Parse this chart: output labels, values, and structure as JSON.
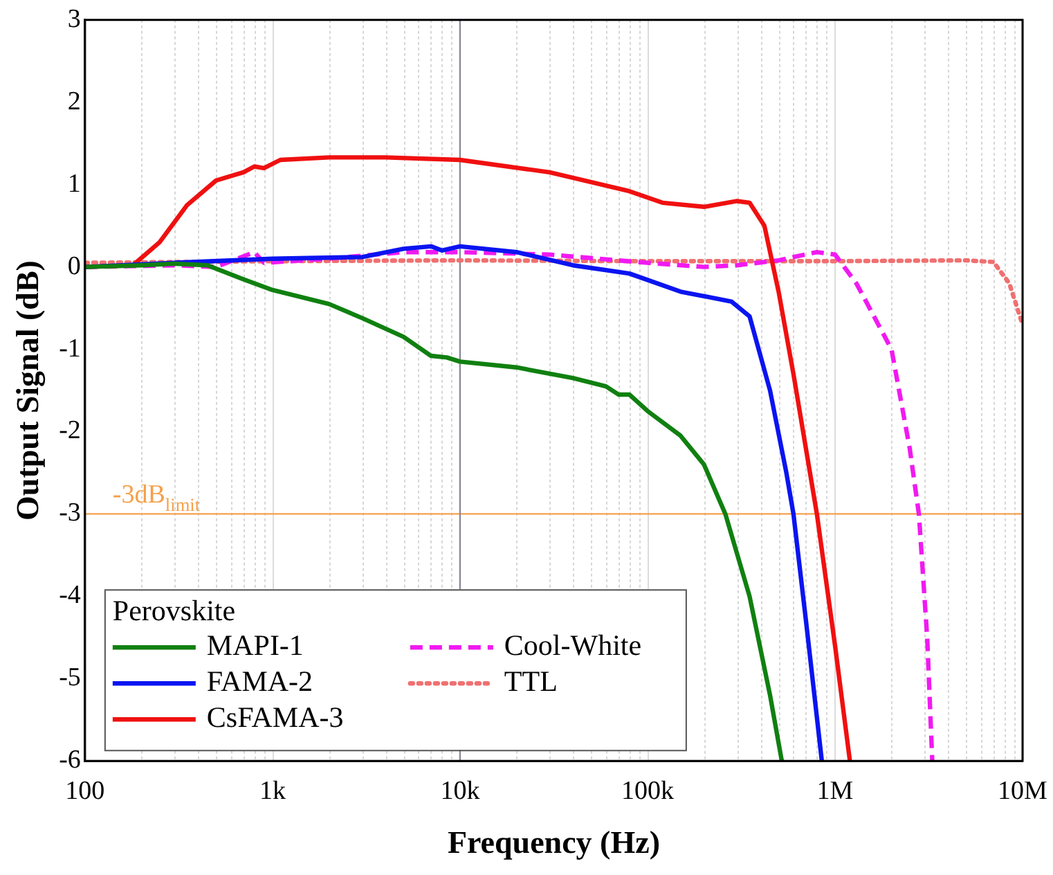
{
  "chart_data": {
    "type": "line",
    "xlabel": "Frequency (Hz)",
    "ylabel": "Output Signal (dB)",
    "log": "x",
    "grid": "x",
    "legend": "bottom left",
    "legend_title": "Perovskite",
    "marker": "none",
    "xlim": [
      100,
      10000000
    ],
    "xticks": [
      100,
      {
        "value": 1000,
        "label": "1k"
      },
      {
        "value": 10000,
        "label": "10k"
      },
      {
        "value": 100000,
        "label": "100k"
      },
      {
        "value": 1000000,
        "label": "1M"
      },
      {
        "value": 10000000,
        "label": "10M"
      }
    ],
    "ylim": [
      -6,
      3
    ],
    "yticks": [
      -6,
      -5,
      -4,
      -3,
      -2,
      -1,
      0,
      1,
      2,
      3
    ],
    "ref_lines": [
      {
        "axis": "y",
        "value": -3,
        "label": "-3dB$_{limit}$",
        "color": "#f5a04a"
      },
      {
        "axis": "x",
        "value": 10000,
        "label": null,
        "color": "#8a8a9a"
      }
    ],
    "series": [
      {
        "name": "MAPI-1",
        "color": "#108010",
        "line_style": "solid",
        "x": [
          100,
          200,
          300,
          450,
          700,
          1000,
          2000,
          3000,
          5000,
          7000,
          8500,
          10000,
          20000,
          40000,
          60000,
          70000,
          80000,
          100000,
          150000,
          200000,
          260000,
          350000,
          450000,
          520000
        ],
        "values": [
          0,
          0.02,
          0.04,
          0.02,
          -0.15,
          -0.28,
          -0.45,
          -0.62,
          -0.85,
          -1.08,
          -1.1,
          -1.15,
          -1.22,
          -1.35,
          -1.45,
          -1.55,
          -1.55,
          -1.75,
          -2.05,
          -2.4,
          -3.0,
          -4.0,
          -5.2,
          -6
        ]
      },
      {
        "name": "FAMA-2",
        "color": "#0a14f0",
        "line_style": "solid",
        "x": [
          100,
          300,
          1000,
          3000,
          5000,
          7000,
          8000,
          10000,
          20000,
          40000,
          80000,
          150000,
          280000,
          350000,
          450000,
          550000,
          600000,
          700000,
          850000
        ],
        "values": [
          0,
          0.05,
          0.1,
          0.12,
          0.22,
          0.25,
          0.2,
          0.25,
          0.18,
          0.02,
          -0.08,
          -0.3,
          -0.42,
          -0.6,
          -1.5,
          -2.5,
          -3.0,
          -4.3,
          -6
        ]
      },
      {
        "name": "CsFAMA-3",
        "color": "#f01010",
        "line_style": "solid",
        "x": [
          100,
          180,
          250,
          350,
          500,
          700,
          800,
          900,
          1100,
          2000,
          4000,
          10000,
          30000,
          80000,
          120000,
          200000,
          300000,
          350000,
          420000,
          500000,
          600000,
          800000,
          1000000,
          1200000
        ],
        "values": [
          0,
          0.02,
          0.3,
          0.75,
          1.05,
          1.15,
          1.22,
          1.2,
          1.3,
          1.33,
          1.33,
          1.3,
          1.15,
          0.92,
          0.78,
          0.73,
          0.8,
          0.78,
          0.5,
          -0.3,
          -1.3,
          -3.0,
          -4.6,
          -6
        ]
      },
      {
        "name": "Cool-White",
        "color": "#f01af0",
        "line_style": "dashed",
        "x": [
          100,
          300,
          500,
          800,
          900,
          2000,
          5000,
          10000,
          30000,
          100000,
          200000,
          300000,
          500000,
          800000,
          1000000,
          1300000,
          2000000,
          2500000,
          2800000,
          3100000,
          3300000
        ],
        "values": [
          0,
          0.02,
          0,
          0.18,
          0.05,
          0.1,
          0.18,
          0.18,
          0.15,
          0.05,
          0,
          0.02,
          0.08,
          0.18,
          0.15,
          -0.2,
          -1.0,
          -2.2,
          -3.0,
          -4.5,
          -6
        ]
      },
      {
        "name": "TTL",
        "color": "#f07070",
        "line_style": "dotted",
        "x": [
          100,
          1000,
          10000,
          100000,
          1000000,
          5000000,
          7000000,
          8500000,
          10000000
        ],
        "values": [
          0.05,
          0.07,
          0.08,
          0.07,
          0.07,
          0.08,
          0.06,
          -0.2,
          -0.7
        ]
      }
    ]
  }
}
